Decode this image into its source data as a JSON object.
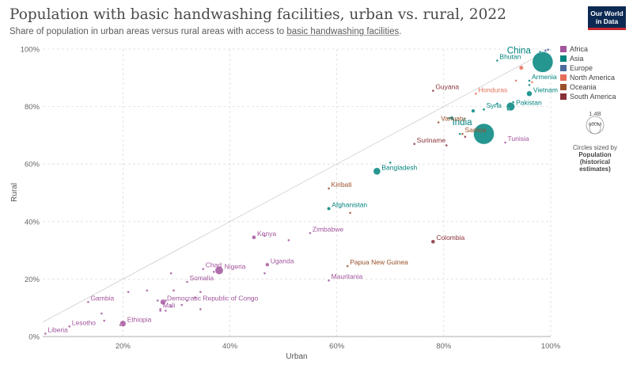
{
  "header": {
    "title": "Population with basic handwashing facilities, urban vs. rural, 2022",
    "subtitle_text": "Share of population in urban areas versus rural areas with access to ",
    "subtitle_link": "basic handwashing facilities",
    "subtitle_end": ".",
    "logo_line1": "Our World",
    "logo_line2": "in Data"
  },
  "legend": {
    "items": [
      {
        "label": "Africa",
        "color": "#a2559c"
      },
      {
        "label": "Asia",
        "color": "#00847e"
      },
      {
        "label": "Europe",
        "color": "#4c6a9c"
      },
      {
        "label": "North America",
        "color": "#e56e5a"
      },
      {
        "label": "Oceania",
        "color": "#9a5129"
      },
      {
        "label": "South America",
        "color": "#883039"
      }
    ]
  },
  "size_legend": {
    "large_label": "1.4B",
    "small_label": "600M",
    "note": "Circles sized by",
    "variable": "Population (historical estimates)"
  },
  "chart_data": {
    "type": "scatter",
    "title": "Population with basic handwashing facilities, urban vs. rural, 2022",
    "xlabel": "Urban",
    "ylabel": "Rural",
    "xlim": [
      5,
      100
    ],
    "ylim": [
      0,
      100
    ],
    "xticks": [
      20,
      40,
      60,
      80,
      100
    ],
    "yticks": [
      0,
      20,
      40,
      60,
      80,
      100
    ],
    "xtick_labels": [
      "20%",
      "40%",
      "60%",
      "80%",
      "100%"
    ],
    "ytick_labels": [
      "0%",
      "20%",
      "40%",
      "60%",
      "80%",
      "100%"
    ],
    "grid": true,
    "reference_line": "y = x",
    "legend_position": "right",
    "points": [
      {
        "label": "China",
        "x": 98.5,
        "y": 95.5,
        "pop": 1420,
        "region": "Asia",
        "labeled": true
      },
      {
        "label": "India",
        "x": 87.5,
        "y": 70.5,
        "pop": 1420,
        "region": "Asia",
        "labeled": true
      },
      {
        "label": "Bhutan",
        "x": 90,
        "y": 96,
        "pop": 0.8,
        "region": "Asia",
        "labeled": true
      },
      {
        "label": "Armenia",
        "x": 96,
        "y": 89,
        "pop": 2.8,
        "region": "Asia",
        "labeled": true
      },
      {
        "label": "Vietnam",
        "x": 96,
        "y": 84.5,
        "pop": 98,
        "region": "Asia",
        "labeled": true
      },
      {
        "label": "Pakistan",
        "x": 92.5,
        "y": 80,
        "pop": 235,
        "region": "Asia",
        "labeled": true
      },
      {
        "label": "Syria",
        "x": 87.5,
        "y": 79,
        "pop": 22,
        "region": "Asia",
        "labeled": true
      },
      {
        "label": "Bangladesh",
        "x": 67.5,
        "y": 57.5,
        "pop": 170,
        "region": "Asia",
        "labeled": true
      },
      {
        "label": "Afghanistan",
        "x": 58.5,
        "y": 44.5,
        "pop": 41,
        "region": "Asia",
        "labeled": true
      },
      {
        "label": "Honduras",
        "x": 86,
        "y": 84.5,
        "pop": 10,
        "region": "North America",
        "labeled": true
      },
      {
        "label": "Guyana",
        "x": 78,
        "y": 85.5,
        "pop": 0.8,
        "region": "South America",
        "labeled": true
      },
      {
        "label": "Suriname",
        "x": 74.5,
        "y": 67,
        "pop": 0.6,
        "region": "South America",
        "labeled": true
      },
      {
        "label": "Colombia",
        "x": 78,
        "y": 33,
        "pop": 52,
        "region": "South America",
        "labeled": true
      },
      {
        "label": "Vanuatu",
        "x": 79,
        "y": 74.5,
        "pop": 0.3,
        "region": "Oceania",
        "labeled": true
      },
      {
        "label": "Kiribati",
        "x": 58.5,
        "y": 51.5,
        "pop": 0.13,
        "region": "Oceania",
        "labeled": true
      },
      {
        "label": "Papua New Guinea",
        "x": 62,
        "y": 24.5,
        "pop": 10,
        "region": "Oceania",
        "labeled": true
      },
      {
        "label": "Samoa",
        "x": 83.5,
        "y": 70.5,
        "pop": 0.2,
        "region": "Oceania",
        "labeled": true
      },
      {
        "label": "Tunisia",
        "x": 91.5,
        "y": 67.5,
        "pop": 12,
        "region": "Africa",
        "labeled": true
      },
      {
        "label": "Zimbabwe",
        "x": 55,
        "y": 36,
        "pop": 16,
        "region": "Africa",
        "labeled": true
      },
      {
        "label": "Kenya",
        "x": 44.5,
        "y": 34.5,
        "pop": 54,
        "region": "Africa",
        "labeled": true
      },
      {
        "label": "Uganda",
        "x": 47,
        "y": 25,
        "pop": 47,
        "region": "Africa",
        "labeled": true
      },
      {
        "label": "Mauritania",
        "x": 58.5,
        "y": 19.5,
        "pop": 4.7,
        "region": "Africa",
        "labeled": true
      },
      {
        "label": "Chad",
        "x": 35,
        "y": 23.5,
        "pop": 18,
        "region": "Africa",
        "labeled": true
      },
      {
        "label": "Nigeria",
        "x": 38,
        "y": 23,
        "pop": 218,
        "region": "Africa",
        "labeled": true
      },
      {
        "label": "Somalia",
        "x": 32,
        "y": 19,
        "pop": 17.6,
        "region": "Africa",
        "labeled": true
      },
      {
        "label": "Democratic Republic of Congo",
        "x": 27.5,
        "y": 12,
        "pop": 99,
        "region": "Africa",
        "labeled": true
      },
      {
        "label": "Mali",
        "x": 27,
        "y": 9.5,
        "pop": 22.6,
        "region": "Africa",
        "labeled": true
      },
      {
        "label": "Gambia",
        "x": 13.5,
        "y": 12,
        "pop": 2.7,
        "region": "Africa",
        "labeled": true
      },
      {
        "label": "Lesotho",
        "x": 10,
        "y": 3.5,
        "pop": 2.3,
        "region": "Africa",
        "labeled": true
      },
      {
        "label": "Liberia",
        "x": 5.5,
        "y": 1,
        "pop": 5.3,
        "region": "Africa",
        "labeled": true
      },
      {
        "label": "Ethiopia",
        "x": 20,
        "y": 4.5,
        "pop": 123,
        "region": "Africa",
        "labeled": true
      },
      {
        "label": "",
        "x": 99.5,
        "y": 99.8,
        "pop": 5,
        "region": "Europe",
        "labeled": false
      },
      {
        "label": "",
        "x": 99,
        "y": 99.5,
        "pop": 3,
        "region": "Europe",
        "labeled": false
      },
      {
        "label": "",
        "x": 98,
        "y": 99,
        "pop": 2,
        "region": "Asia",
        "labeled": false
      },
      {
        "label": "",
        "x": 94.5,
        "y": 93.5,
        "pop": 60,
        "region": "North America",
        "labeled": false
      },
      {
        "label": "",
        "x": 93.5,
        "y": 89,
        "pop": 1,
        "region": "North America",
        "labeled": false
      },
      {
        "label": "",
        "x": 96.5,
        "y": 88.5,
        "pop": 3,
        "region": "North America",
        "labeled": false
      },
      {
        "label": "",
        "x": 96,
        "y": 87.5,
        "pop": 1,
        "region": "Asia",
        "labeled": false
      },
      {
        "label": "",
        "x": 93,
        "y": 81.5,
        "pop": 8,
        "region": "Asia",
        "labeled": false
      },
      {
        "label": "",
        "x": 90,
        "y": 81,
        "pop": 3,
        "region": "Asia",
        "labeled": false
      },
      {
        "label": "",
        "x": 92,
        "y": 79,
        "pop": 5,
        "region": "Asia",
        "labeled": false
      },
      {
        "label": "",
        "x": 85.5,
        "y": 78.5,
        "pop": 45,
        "region": "Asia",
        "labeled": false
      },
      {
        "label": "",
        "x": 81,
        "y": 76,
        "pop": 3,
        "region": "Asia",
        "labeled": false
      },
      {
        "label": "",
        "x": 81.5,
        "y": 76,
        "pop": 45,
        "region": "Asia",
        "labeled": false
      },
      {
        "label": "",
        "x": 83,
        "y": 70.5,
        "pop": 10,
        "region": "Asia",
        "labeled": false
      },
      {
        "label": "",
        "x": 84,
        "y": 69.5,
        "pop": 3,
        "region": "South America",
        "labeled": false
      },
      {
        "label": "",
        "x": 80.5,
        "y": 66.5,
        "pop": 0.6,
        "region": "South America",
        "labeled": false
      },
      {
        "label": "",
        "x": 70,
        "y": 60.5,
        "pop": 6,
        "region": "Asia",
        "labeled": false
      },
      {
        "label": "",
        "x": 62.5,
        "y": 43,
        "pop": 0.3,
        "region": "Oceania",
        "labeled": false
      },
      {
        "label": "",
        "x": 51,
        "y": 33.5,
        "pop": 0.5,
        "region": "Africa",
        "labeled": false
      },
      {
        "label": "",
        "x": 46.5,
        "y": 35,
        "pop": 0.5,
        "region": "Africa",
        "labeled": false
      },
      {
        "label": "",
        "x": 37,
        "y": 22.5,
        "pop": 10,
        "region": "Africa",
        "labeled": false
      },
      {
        "label": "",
        "x": 46.5,
        "y": 22,
        "pop": 12,
        "region": "Africa",
        "labeled": false
      },
      {
        "label": "",
        "x": 29,
        "y": 22,
        "pop": 2,
        "region": "Africa",
        "labeled": false
      },
      {
        "label": "",
        "x": 24.5,
        "y": 16,
        "pop": 1,
        "region": "Africa",
        "labeled": false
      },
      {
        "label": "",
        "x": 21,
        "y": 15.5,
        "pop": 1,
        "region": "Africa",
        "labeled": false
      },
      {
        "label": "",
        "x": 29.5,
        "y": 16,
        "pop": 1,
        "region": "Africa",
        "labeled": false
      },
      {
        "label": "",
        "x": 33.5,
        "y": 13.5,
        "pop": 3,
        "region": "Africa",
        "labeled": false
      },
      {
        "label": "",
        "x": 34.5,
        "y": 15.5,
        "pop": 6,
        "region": "Africa",
        "labeled": false
      },
      {
        "label": "",
        "x": 32,
        "y": 12.5,
        "pop": 1,
        "region": "Africa",
        "labeled": false
      },
      {
        "label": "",
        "x": 28,
        "y": 12.5,
        "pop": 14,
        "region": "Africa",
        "labeled": false
      },
      {
        "label": "",
        "x": 26.5,
        "y": 12.5,
        "pop": 10,
        "region": "Africa",
        "labeled": false
      },
      {
        "label": "",
        "x": 29,
        "y": 10.5,
        "pop": 3,
        "region": "Africa",
        "labeled": false
      },
      {
        "label": "",
        "x": 31,
        "y": 11,
        "pop": 12,
        "region": "Africa",
        "labeled": false
      },
      {
        "label": "",
        "x": 34.5,
        "y": 9.5,
        "pop": 4,
        "region": "Africa",
        "labeled": false
      },
      {
        "label": "",
        "x": 27,
        "y": 9,
        "pop": 6,
        "region": "Africa",
        "labeled": false
      },
      {
        "label": "",
        "x": 28,
        "y": 9,
        "pop": 2,
        "region": "Africa",
        "labeled": false
      },
      {
        "label": "",
        "x": 16,
        "y": 8,
        "pop": 1,
        "region": "Africa",
        "labeled": false
      },
      {
        "label": "",
        "x": 16.5,
        "y": 5.5,
        "pop": 2,
        "region": "Africa",
        "labeled": false
      },
      {
        "label": "",
        "x": 19.5,
        "y": 4,
        "pop": 1,
        "region": "Africa",
        "labeled": false
      }
    ]
  }
}
